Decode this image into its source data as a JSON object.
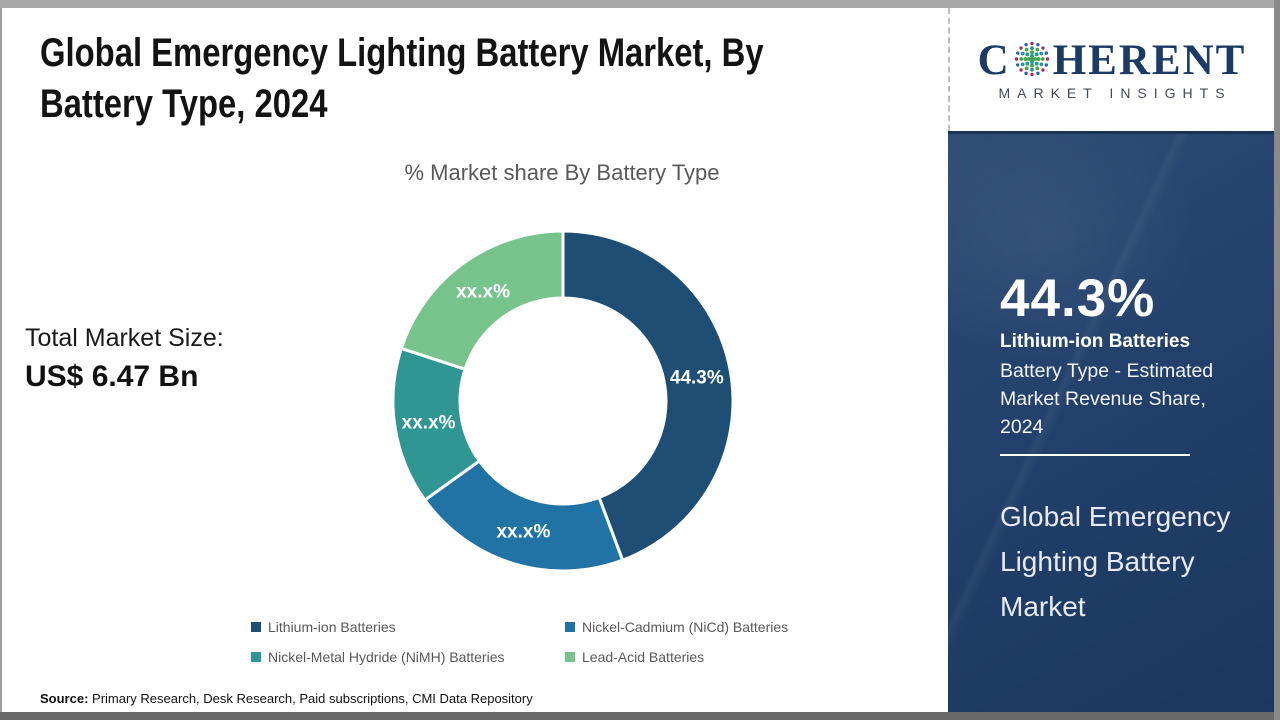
{
  "page": {
    "title": "Global Emergency Lighting Battery Market, By Battery Type, 2024",
    "total_market_label": "Total Market Size:",
    "total_market_value": "US$ 6.47 Bn",
    "source_label": "Source:",
    "source_text": " Primary Research, Desk Research, Paid subscriptions, CMI Data Repository"
  },
  "chart_data": {
    "type": "pie",
    "subtype": "donut",
    "title": "% Market share By Battery Type",
    "start_angle_deg": 0,
    "direction": "clockwise",
    "legend_position": "bottom",
    "segments": [
      {
        "name": "Lithium-ion Batteries",
        "value": 44.3,
        "label": "44.3%",
        "color": "#1f4e74"
      },
      {
        "name": "Nickel-Cadmium (NiCd) Batteries",
        "value": 20.8,
        "label": "xx.x%",
        "color": "#2173a6"
      },
      {
        "name": "Nickel-Metal Hydride (NiMH) Batteries",
        "value": 14.9,
        "label": "xx.x%",
        "color": "#2f9694"
      },
      {
        "name": "Lead-Acid Batteries",
        "value": 20.0,
        "label": "xx.x%",
        "color": "#76c48b"
      }
    ]
  },
  "sidebar": {
    "logo": {
      "brand_start": "C",
      "brand_end": "HERENT",
      "subtitle": "MARKET INSIGHTS"
    },
    "highlight": {
      "value": "44.3%",
      "name": "Lithium-ion Batteries",
      "description": "Battery Type - Estimated Market Revenue Share, 2024"
    },
    "market_name": "Global Emergency Lighting Battery Market",
    "panel_color": "#21406c"
  }
}
